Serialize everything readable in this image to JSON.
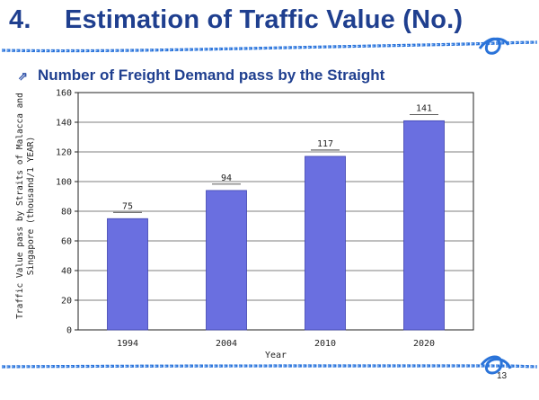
{
  "slide": {
    "title_number": "4.",
    "title_text": "Estimation of Traffic Value (No.)",
    "subtitle": "Number of Freight Demand pass by the Straight",
    "page_number": "13"
  },
  "colors": {
    "title": "#1f3f8f",
    "bar": "#6a6fe0",
    "rope": "#2a73d9"
  },
  "chart_data": {
    "type": "bar",
    "categories": [
      "1994",
      "2004",
      "2010",
      "2020"
    ],
    "values": [
      75,
      94,
      117,
      141
    ],
    "data_labels": [
      "75",
      "94",
      "117",
      "141"
    ],
    "title": "",
    "xlabel": "Year",
    "ylabel_lines": [
      "Traffic Value pass by Straits of Malacca and",
      "Singapore (thousand/1 YEAR)"
    ],
    "ylim": [
      0,
      160
    ],
    "yticks": [
      0,
      20,
      40,
      60,
      80,
      100,
      120,
      140,
      160
    ],
    "grid": true,
    "legend": "none"
  }
}
